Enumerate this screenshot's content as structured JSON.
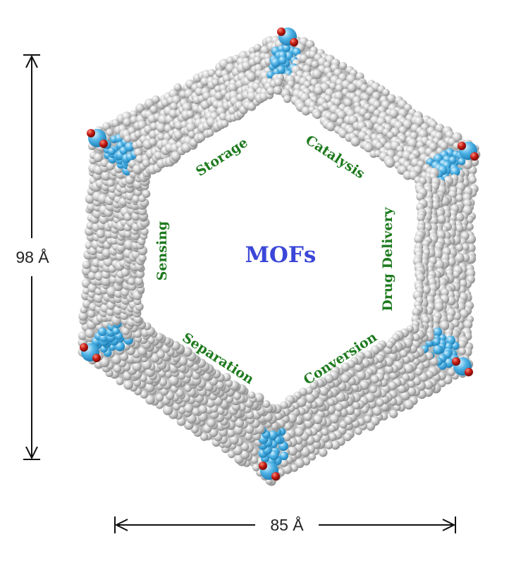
{
  "dimensions": {
    "height_label": "98 Å",
    "width_label": "85 Å"
  },
  "center_label": "MOFs",
  "applications": [
    "Storage",
    "Catalysis",
    "Sensing",
    "Drug Delivery",
    "Separation",
    "Conversion"
  ],
  "colors": {
    "application_text": "#1e7a1e",
    "center_text": "#3b47d8",
    "atom_gray": "#c4c4c4",
    "atom_blue": "#4fb3e6",
    "atom_red": "#c01a12",
    "dimension_line": "#111111"
  }
}
